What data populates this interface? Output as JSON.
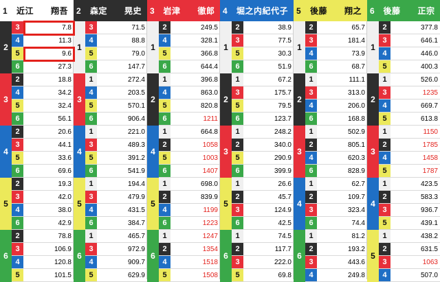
{
  "colors": {
    "1": {
      "bg": "#f0f0f0",
      "fg": "#111111",
      "hdr_bg": "#ffffff"
    },
    "2": {
      "bg": "#2e2e2e",
      "fg": "#ffffff",
      "hdr_bg": "#2e2e2e"
    },
    "3": {
      "bg": "#e7303a",
      "fg": "#ffffff",
      "hdr_bg": "#e7303a"
    },
    "4": {
      "bg": "#1f6fc5",
      "fg": "#ffffff",
      "hdr_bg": "#1f6fc5"
    },
    "5": {
      "bg": "#ece95a",
      "fg": "#111111",
      "hdr_bg": "#ece95a"
    },
    "6": {
      "bg": "#3aa849",
      "fg": "#ffffff",
      "hdr_bg": "#3aa849"
    }
  },
  "racers": [
    {
      "num": "1",
      "name": "近江　　翔吾"
    },
    {
      "num": "2",
      "name": "森定　　晃史"
    },
    {
      "num": "3",
      "name": "岩津　　徹郎"
    },
    {
      "num": "4",
      "name": "堀之内紀代子"
    },
    {
      "num": "5",
      "name": "後藤　　翔之"
    },
    {
      "num": "6",
      "name": "後藤　　正宗"
    }
  ],
  "columns": [
    {
      "first": "1",
      "groups": [
        {
          "second": "2",
          "rows": [
            {
              "third": "3",
              "odds": "7.8"
            },
            {
              "third": "4",
              "odds": "11.3"
            },
            {
              "third": "5",
              "odds": "9.6"
            },
            {
              "third": "6",
              "odds": "27.3"
            }
          ]
        },
        {
          "second": "3",
          "rows": [
            {
              "third": "2",
              "odds": "18.8"
            },
            {
              "third": "4",
              "odds": "34.2"
            },
            {
              "third": "5",
              "odds": "32.4"
            },
            {
              "third": "6",
              "odds": "56.1"
            }
          ]
        },
        {
          "second": "4",
          "rows": [
            {
              "third": "2",
              "odds": "20.6"
            },
            {
              "third": "3",
              "odds": "44.1"
            },
            {
              "third": "5",
              "odds": "33.6"
            },
            {
              "third": "6",
              "odds": "69.6"
            }
          ]
        },
        {
          "second": "5",
          "rows": [
            {
              "third": "2",
              "odds": "19.3"
            },
            {
              "third": "3",
              "odds": "42.0"
            },
            {
              "third": "4",
              "odds": "38.0"
            },
            {
              "third": "6",
              "odds": "42.9"
            }
          ]
        },
        {
          "second": "6",
          "rows": [
            {
              "third": "2",
              "odds": "78.8"
            },
            {
              "third": "3",
              "odds": "106.9"
            },
            {
              "third": "4",
              "odds": "120.8"
            },
            {
              "third": "5",
              "odds": "101.5"
            }
          ]
        }
      ]
    },
    {
      "first": "2",
      "groups": [
        {
          "second": "1",
          "rows": [
            {
              "third": "3",
              "odds": "71.5"
            },
            {
              "third": "4",
              "odds": "88.8"
            },
            {
              "third": "5",
              "odds": "79.0"
            },
            {
              "third": "6",
              "odds": "147.7"
            }
          ]
        },
        {
          "second": "3",
          "rows": [
            {
              "third": "1",
              "odds": "272.4"
            },
            {
              "third": "4",
              "odds": "203.5"
            },
            {
              "third": "5",
              "odds": "570.1"
            },
            {
              "third": "6",
              "odds": "906.4"
            }
          ]
        },
        {
          "second": "4",
          "rows": [
            {
              "third": "1",
              "odds": "221.0"
            },
            {
              "third": "3",
              "odds": "489.3"
            },
            {
              "third": "5",
              "odds": "391.2"
            },
            {
              "third": "6",
              "odds": "541.9"
            }
          ]
        },
        {
          "second": "5",
          "rows": [
            {
              "third": "1",
              "odds": "194.4"
            },
            {
              "third": "3",
              "odds": "479.9"
            },
            {
              "third": "4",
              "odds": "431.5"
            },
            {
              "third": "6",
              "odds": "384.7"
            }
          ]
        },
        {
          "second": "6",
          "rows": [
            {
              "third": "1",
              "odds": "465.7"
            },
            {
              "third": "3",
              "odds": "972.9"
            },
            {
              "third": "4",
              "odds": "909.7"
            },
            {
              "third": "5",
              "odds": "629.9"
            }
          ]
        }
      ]
    },
    {
      "first": "3",
      "groups": [
        {
          "second": "1",
          "rows": [
            {
              "third": "2",
              "odds": "249.5"
            },
            {
              "third": "4",
              "odds": "328.1"
            },
            {
              "third": "5",
              "odds": "366.8"
            },
            {
              "third": "6",
              "odds": "644.4"
            }
          ]
        },
        {
          "second": "2",
          "rows": [
            {
              "third": "1",
              "odds": "396.8"
            },
            {
              "third": "4",
              "odds": "863.0"
            },
            {
              "third": "5",
              "odds": "820.8"
            },
            {
              "third": "6",
              "odds": "1211",
              "hot": true
            }
          ]
        },
        {
          "second": "4",
          "rows": [
            {
              "third": "1",
              "odds": "664.8"
            },
            {
              "third": "2",
              "odds": "1058",
              "hot": true
            },
            {
              "third": "5",
              "odds": "1003",
              "hot": true
            },
            {
              "third": "6",
              "odds": "1407",
              "hot": true
            }
          ]
        },
        {
          "second": "5",
          "rows": [
            {
              "third": "1",
              "odds": "698.0"
            },
            {
              "third": "2",
              "odds": "839.9"
            },
            {
              "third": "4",
              "odds": "1199",
              "hot": true
            },
            {
              "third": "6",
              "odds": "1223",
              "hot": true
            }
          ]
        },
        {
          "second": "6",
          "rows": [
            {
              "third": "1",
              "odds": "1247",
              "hot": true
            },
            {
              "third": "2",
              "odds": "1354",
              "hot": true
            },
            {
              "third": "4",
              "odds": "1518",
              "hot": true
            },
            {
              "third": "5",
              "odds": "1508",
              "hot": true
            }
          ]
        }
      ]
    },
    {
      "first": "4",
      "groups": [
        {
          "second": "1",
          "rows": [
            {
              "third": "2",
              "odds": "38.9"
            },
            {
              "third": "3",
              "odds": "77.5"
            },
            {
              "third": "5",
              "odds": "30.3"
            },
            {
              "third": "6",
              "odds": "51.9"
            }
          ]
        },
        {
          "second": "2",
          "rows": [
            {
              "third": "1",
              "odds": "67.2"
            },
            {
              "third": "3",
              "odds": "175.7"
            },
            {
              "third": "5",
              "odds": "79.5"
            },
            {
              "third": "6",
              "odds": "123.7"
            }
          ]
        },
        {
          "second": "3",
          "rows": [
            {
              "third": "1",
              "odds": "248.2"
            },
            {
              "third": "2",
              "odds": "340.0"
            },
            {
              "third": "5",
              "odds": "290.9"
            },
            {
              "third": "6",
              "odds": "399.9"
            }
          ]
        },
        {
          "second": "5",
          "rows": [
            {
              "third": "1",
              "odds": "26.6"
            },
            {
              "third": "2",
              "odds": "45.7"
            },
            {
              "third": "3",
              "odds": "124.9"
            },
            {
              "third": "6",
              "odds": "42.5"
            }
          ]
        },
        {
          "second": "6",
          "rows": [
            {
              "third": "1",
              "odds": "74.5"
            },
            {
              "third": "2",
              "odds": "117.7"
            },
            {
              "third": "3",
              "odds": "222.0"
            },
            {
              "third": "5",
              "odds": "69.8"
            }
          ]
        }
      ]
    },
    {
      "first": "5",
      "groups": [
        {
          "second": "1",
          "rows": [
            {
              "third": "2",
              "odds": "65.7"
            },
            {
              "third": "3",
              "odds": "181.4"
            },
            {
              "third": "4",
              "odds": "73.9"
            },
            {
              "third": "6",
              "odds": "68.7"
            }
          ]
        },
        {
          "second": "2",
          "rows": [
            {
              "third": "1",
              "odds": "111.1"
            },
            {
              "third": "3",
              "odds": "313.0"
            },
            {
              "third": "4",
              "odds": "206.0"
            },
            {
              "third": "6",
              "odds": "168.8"
            }
          ]
        },
        {
          "second": "3",
          "rows": [
            {
              "third": "1",
              "odds": "502.9"
            },
            {
              "third": "2",
              "odds": "805.1"
            },
            {
              "third": "4",
              "odds": "620.3"
            },
            {
              "third": "6",
              "odds": "828.9"
            }
          ]
        },
        {
          "second": "4",
          "rows": [
            {
              "third": "1",
              "odds": "62.7"
            },
            {
              "third": "2",
              "odds": "109.7"
            },
            {
              "third": "3",
              "odds": "323.4"
            },
            {
              "third": "6",
              "odds": "74.4"
            }
          ]
        },
        {
          "second": "6",
          "rows": [
            {
              "third": "1",
              "odds": "81.2"
            },
            {
              "third": "2",
              "odds": "193.2"
            },
            {
              "third": "3",
              "odds": "443.6"
            },
            {
              "third": "4",
              "odds": "249.8"
            }
          ]
        }
      ]
    },
    {
      "first": "6",
      "groups": [
        {
          "second": "1",
          "rows": [
            {
              "third": "2",
              "odds": "377.8"
            },
            {
              "third": "3",
              "odds": "646.1"
            },
            {
              "third": "4",
              "odds": "446.0"
            },
            {
              "third": "5",
              "odds": "400.3"
            }
          ]
        },
        {
          "second": "2",
          "rows": [
            {
              "third": "1",
              "odds": "526.0"
            },
            {
              "third": "3",
              "odds": "1235",
              "hot": true
            },
            {
              "third": "4",
              "odds": "669.7"
            },
            {
              "third": "5",
              "odds": "613.8"
            }
          ]
        },
        {
          "second": "3",
          "rows": [
            {
              "third": "1",
              "odds": "1150",
              "hot": true
            },
            {
              "third": "2",
              "odds": "1785",
              "hot": true
            },
            {
              "third": "4",
              "odds": "1458",
              "hot": true
            },
            {
              "third": "5",
              "odds": "1787",
              "hot": true
            }
          ]
        },
        {
          "second": "4",
          "rows": [
            {
              "third": "1",
              "odds": "423.5"
            },
            {
              "third": "2",
              "odds": "583.3"
            },
            {
              "third": "3",
              "odds": "936.7"
            },
            {
              "third": "5",
              "odds": "439.1"
            }
          ]
        },
        {
          "second": "5",
          "rows": [
            {
              "third": "1",
              "odds": "438.2"
            },
            {
              "third": "2",
              "odds": "631.5"
            },
            {
              "third": "3",
              "odds": "1063",
              "hot": true
            },
            {
              "third": "4",
              "odds": "507.0"
            }
          ]
        }
      ]
    }
  ]
}
